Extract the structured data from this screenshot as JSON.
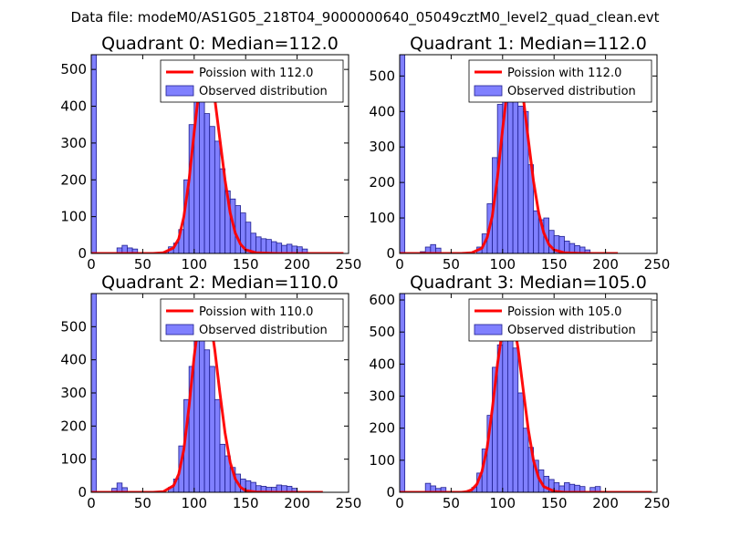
{
  "figure": {
    "title": "Data file: modeM0/AS1G05_218T04_9000000640_05049cztM0_level2_quad_clean.evt"
  },
  "colors": {
    "bar_fill": "#8080ff",
    "bar_edge": "#1f1f8f",
    "poisson": "#ff0000",
    "axis": "#000000"
  },
  "chart_data": [
    {
      "type": "bar",
      "title": "Quadrant 0: Median=112.0",
      "median": 112.0,
      "bin_width": 5,
      "xlim": [
        0,
        250
      ],
      "xticks": [
        "0",
        "50",
        "100",
        "150",
        "200",
        "250"
      ],
      "ylim": [
        0,
        540
      ],
      "yticks": [
        "0",
        "100",
        "200",
        "300",
        "400",
        "500"
      ],
      "legend": {
        "location": "upper-right",
        "line_label": "Poission with 112.0",
        "bar_label": "Observed distribution"
      },
      "bins": [
        0,
        5,
        10,
        15,
        20,
        25,
        30,
        35,
        40,
        45,
        50,
        55,
        60,
        65,
        70,
        75,
        80,
        85,
        90,
        95,
        100,
        105,
        110,
        115,
        120,
        125,
        130,
        135,
        140,
        145,
        150,
        155,
        160,
        165,
        170,
        175,
        180,
        185,
        190,
        195,
        200,
        205,
        210,
        215,
        220,
        225,
        230,
        235,
        240,
        245
      ],
      "values": [
        540,
        0,
        0,
        0,
        0,
        15,
        22,
        15,
        12,
        0,
        0,
        0,
        0,
        0,
        5,
        18,
        28,
        65,
        200,
        350,
        510,
        440,
        380,
        345,
        305,
        230,
        170,
        148,
        130,
        110,
        85,
        55,
        45,
        40,
        38,
        32,
        28,
        22,
        25,
        20,
        18,
        12,
        0,
        0,
        0,
        0,
        0,
        0,
        0,
        0
      ],
      "poisson_x": [
        0,
        60,
        70,
        80,
        85,
        90,
        95,
        100,
        105,
        110,
        112,
        115,
        120,
        125,
        130,
        135,
        140,
        145,
        150,
        160,
        180,
        245
      ],
      "poisson_y": [
        0,
        0,
        2,
        15,
        40,
        100,
        200,
        330,
        450,
        515,
        520,
        505,
        420,
        310,
        200,
        110,
        55,
        25,
        10,
        2,
        0,
        0
      ]
    },
    {
      "type": "bar",
      "title": "Quadrant 1: Median=112.0",
      "median": 112.0,
      "bin_width": 5,
      "xlim": [
        0,
        250
      ],
      "xticks": [
        "0",
        "50",
        "100",
        "150",
        "200",
        "250"
      ],
      "ylim": [
        0,
        560
      ],
      "yticks": [
        "0",
        "100",
        "200",
        "300",
        "400",
        "500"
      ],
      "legend": {
        "location": "upper-right",
        "line_label": "Poission with 112.0",
        "bar_label": "Observed distribution"
      },
      "bins": [
        0,
        5,
        10,
        15,
        20,
        25,
        30,
        35,
        40,
        45,
        50,
        55,
        60,
        65,
        70,
        75,
        80,
        85,
        90,
        95,
        100,
        105,
        110,
        115,
        120,
        125,
        130,
        135,
        140,
        145,
        150,
        155,
        160,
        165,
        170,
        175,
        180,
        185,
        190,
        195,
        200,
        205,
        210,
        215,
        220,
        225,
        230,
        235,
        240,
        245
      ],
      "values": [
        560,
        0,
        0,
        0,
        5,
        18,
        25,
        15,
        0,
        0,
        0,
        0,
        0,
        0,
        0,
        18,
        55,
        140,
        270,
        420,
        450,
        530,
        510,
        415,
        400,
        250,
        120,
        95,
        100,
        65,
        50,
        48,
        35,
        28,
        22,
        18,
        10,
        0,
        0,
        0,
        0,
        0,
        0,
        0,
        0,
        0,
        0,
        0,
        0,
        0
      ],
      "poisson_x": [
        0,
        60,
        70,
        80,
        85,
        90,
        95,
        100,
        105,
        110,
        112,
        115,
        120,
        125,
        130,
        135,
        140,
        145,
        150,
        160,
        180,
        212
      ],
      "poisson_y": [
        0,
        0,
        2,
        15,
        45,
        105,
        215,
        350,
        470,
        530,
        535,
        520,
        440,
        320,
        205,
        115,
        58,
        25,
        10,
        2,
        0,
        0
      ]
    },
    {
      "type": "bar",
      "title": "Quadrant 2: Median=110.0",
      "median": 110.0,
      "bin_width": 5,
      "xlim": [
        0,
        250
      ],
      "xticks": [
        "0",
        "50",
        "100",
        "150",
        "200",
        "250"
      ],
      "ylim": [
        0,
        600
      ],
      "yticks": [
        "0",
        "100",
        "200",
        "300",
        "400",
        "500"
      ],
      "legend": {
        "location": "upper-right",
        "line_label": "Poission with 110.0",
        "bar_label": "Observed distribution"
      },
      "bins": [
        0,
        5,
        10,
        15,
        20,
        25,
        30,
        35,
        40,
        45,
        50,
        55,
        60,
        65,
        70,
        75,
        80,
        85,
        90,
        95,
        100,
        105,
        110,
        115,
        120,
        125,
        130,
        135,
        140,
        145,
        150,
        155,
        160,
        165,
        170,
        175,
        180,
        185,
        190,
        195,
        200,
        205,
        210,
        215,
        220,
        225,
        230,
        235,
        240,
        245
      ],
      "values": [
        600,
        0,
        0,
        0,
        12,
        28,
        14,
        0,
        0,
        0,
        0,
        0,
        0,
        0,
        0,
        15,
        40,
        140,
        280,
        380,
        500,
        540,
        430,
        380,
        280,
        145,
        110,
        75,
        55,
        40,
        35,
        30,
        20,
        18,
        15,
        15,
        22,
        20,
        18,
        12,
        0,
        0,
        0,
        0,
        0,
        0,
        0,
        0,
        0,
        0
      ],
      "poisson_x": [
        0,
        60,
        70,
        80,
        85,
        90,
        95,
        100,
        105,
        108,
        110,
        115,
        120,
        125,
        130,
        135,
        140,
        145,
        150,
        160,
        180,
        225
      ],
      "poisson_y": [
        0,
        0,
        2,
        20,
        55,
        130,
        260,
        410,
        530,
        565,
        570,
        540,
        430,
        300,
        180,
        90,
        40,
        15,
        5,
        1,
        0,
        0
      ]
    },
    {
      "type": "bar",
      "title": "Quadrant 3: Median=105.0",
      "median": 105.0,
      "bin_width": 5,
      "xlim": [
        0,
        250
      ],
      "xticks": [
        "0",
        "50",
        "100",
        "150",
        "200",
        "250"
      ],
      "ylim": [
        0,
        620
      ],
      "yticks": [
        "0",
        "100",
        "200",
        "300",
        "400",
        "500",
        "600"
      ],
      "legend": {
        "location": "upper-right",
        "line_label": "Poission with 105.0",
        "bar_label": "Observed distribution"
      },
      "bins": [
        0,
        5,
        10,
        15,
        20,
        25,
        30,
        35,
        40,
        45,
        50,
        55,
        60,
        65,
        70,
        75,
        80,
        85,
        90,
        95,
        100,
        105,
        110,
        115,
        120,
        125,
        130,
        135,
        140,
        145,
        150,
        155,
        160,
        165,
        170,
        175,
        180,
        185,
        190,
        195,
        200,
        205,
        210,
        215,
        220,
        225,
        230,
        235,
        240,
        245
      ],
      "values": [
        620,
        0,
        0,
        0,
        0,
        28,
        20,
        12,
        15,
        0,
        0,
        0,
        0,
        0,
        15,
        60,
        135,
        240,
        390,
        460,
        530,
        540,
        450,
        310,
        200,
        140,
        100,
        70,
        50,
        40,
        30,
        20,
        30,
        25,
        22,
        18,
        0,
        15,
        18,
        0,
        0,
        0,
        0,
        0,
        0,
        0,
        0,
        0,
        0,
        0
      ],
      "poisson_x": [
        0,
        60,
        65,
        70,
        75,
        80,
        85,
        90,
        95,
        100,
        105,
        110,
        115,
        120,
        125,
        130,
        135,
        140,
        150,
        160,
        180,
        245
      ],
      "poisson_y": [
        0,
        0,
        2,
        8,
        25,
        65,
        140,
        260,
        400,
        510,
        565,
        545,
        450,
        320,
        195,
        100,
        45,
        18,
        3,
        0,
        0,
        0
      ]
    }
  ]
}
